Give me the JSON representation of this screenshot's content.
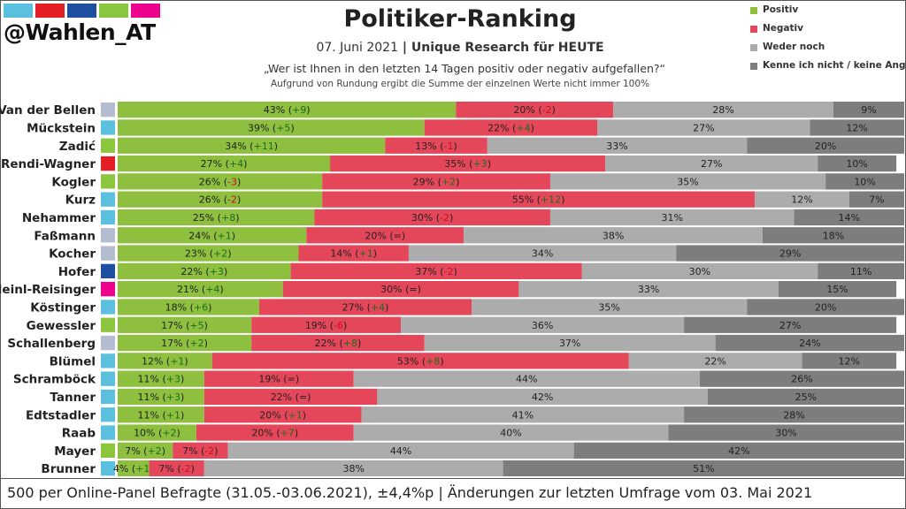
{
  "brand": {
    "handle": "@Wahlen_AT",
    "strip_colors": [
      "#5bc0de",
      "#e31e24",
      "#1f4fa0",
      "#8cc63f",
      "#ec008c"
    ]
  },
  "header": {
    "title": "Politiker-Ranking",
    "date": "07. Juni 2021",
    "separator": " | ",
    "source": "Unique Research für HEUTE",
    "question": "„Wer ist Ihnen in den letzten 14 Tagen positiv oder negativ aufgefallen?“",
    "note": "Aufgrund von Rundung ergibt die Summe der einzelnen Werte nicht immer 100%"
  },
  "legend": [
    {
      "label": "Positiv",
      "color": "#8fbf3f"
    },
    {
      "label": "Negativ",
      "color": "#e5475a"
    },
    {
      "label": "Weder noch",
      "color": "#acacac"
    },
    {
      "label": "Kenne ich nicht / keine Angabe",
      "color": "#7d7d7d"
    }
  ],
  "footer": "500 per Online-Panel Befragte (31.05.-03.06.2021), ±4,4%p | Änderungen zur letzten Umfrage vom 03. Mai 2021",
  "chart_data": {
    "type": "bar",
    "orientation": "horizontal",
    "stacked": true,
    "xlim": [
      0,
      100
    ],
    "categories": [
      "Van der Bellen",
      "Mückstein",
      "Zadić",
      "Rendi-Wagner",
      "Kogler",
      "Kurz",
      "Nehammer",
      "Faßmann",
      "Kocher",
      "Hofer",
      "Meinl-Reisinger",
      "Köstinger",
      "Gewessler",
      "Schallenberg",
      "Blümel",
      "Schramböck",
      "Tanner",
      "Edtstadler",
      "Raab",
      "Mayer",
      "Brunner"
    ],
    "party_colors": [
      "#b4bdd0",
      "#5bc0de",
      "#8cc63f",
      "#e31e24",
      "#8cc63f",
      "#5bc0de",
      "#5bc0de",
      "#b4bdd0",
      "#b4bdd0",
      "#1f4fa0",
      "#ec008c",
      "#5bc0de",
      "#8cc63f",
      "#b4bdd0",
      "#5bc0de",
      "#5bc0de",
      "#5bc0de",
      "#5bc0de",
      "#5bc0de",
      "#8cc63f",
      "#5bc0de"
    ],
    "series": [
      {
        "name": "Positiv",
        "color": "#8fbf3f",
        "values": [
          43,
          39,
          34,
          27,
          26,
          26,
          25,
          24,
          23,
          22,
          21,
          18,
          17,
          17,
          12,
          11,
          11,
          11,
          10,
          7,
          4
        ],
        "changes": [
          "+9",
          "+5",
          "+11",
          "+4",
          "-3",
          "-2",
          "+8",
          "+1",
          "+2",
          "+3",
          "+4",
          "+6",
          "+5",
          "+2",
          "+1",
          "+3",
          "+3",
          "+1",
          "+2",
          "+2",
          "+1"
        ]
      },
      {
        "name": "Negativ",
        "color": "#e5475a",
        "values": [
          20,
          22,
          13,
          35,
          29,
          55,
          30,
          20,
          14,
          37,
          30,
          27,
          19,
          22,
          53,
          19,
          22,
          20,
          20,
          7,
          7
        ],
        "changes": [
          "-2",
          "+4",
          "-1",
          "+3",
          "+2",
          "+12",
          "-2",
          "=",
          "+1",
          "-2",
          "=",
          "+4",
          "-6",
          "+8",
          "+8",
          "=",
          "=",
          "+1",
          "+7",
          "-2",
          "-2"
        ]
      },
      {
        "name": "Weder noch",
        "color": "#acacac",
        "values": [
          28,
          27,
          33,
          27,
          35,
          12,
          31,
          38,
          34,
          30,
          33,
          35,
          36,
          37,
          22,
          44,
          42,
          41,
          40,
          44,
          38
        ]
      },
      {
        "name": "Kenne ich nicht / keine Angabe",
        "color": "#7d7d7d",
        "values": [
          9,
          12,
          20,
          10,
          10,
          7,
          14,
          18,
          29,
          11,
          15,
          20,
          27,
          24,
          12,
          26,
          25,
          28,
          30,
          42,
          51
        ]
      }
    ],
    "change_colors": {
      "up": "#1a6e1a",
      "down": "#c8101f",
      "neutral": "#222222"
    }
  }
}
